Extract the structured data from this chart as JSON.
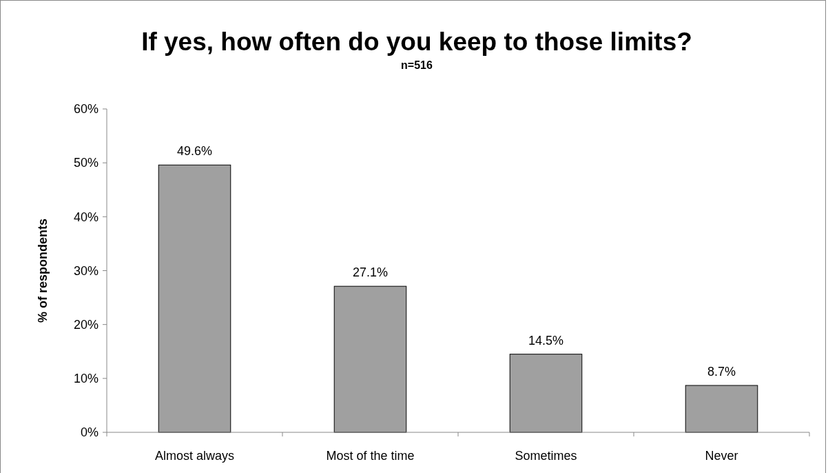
{
  "chart_data": {
    "type": "bar",
    "title": "If yes, how often do you keep to those limits?",
    "subtitle": "n=516",
    "ylabel": "% of respondents",
    "categories": [
      "Almost always",
      "Most of the time",
      "Sometimes",
      "Never"
    ],
    "values": [
      49.6,
      27.1,
      14.5,
      8.7
    ],
    "value_labels": [
      "49.6%",
      "27.1%",
      "14.5%",
      "8.7%"
    ],
    "color": "#a0a0a0",
    "ylim": [
      0,
      60
    ],
    "yticks": [
      {
        "value": 0,
        "label": "0%"
      },
      {
        "value": 10,
        "label": "10%"
      },
      {
        "value": 20,
        "label": "20%"
      },
      {
        "value": 30,
        "label": "30%"
      },
      {
        "value": 40,
        "label": "40%"
      },
      {
        "value": 50,
        "label": "50%"
      },
      {
        "value": 60,
        "label": "60%"
      }
    ],
    "grid": false
  }
}
